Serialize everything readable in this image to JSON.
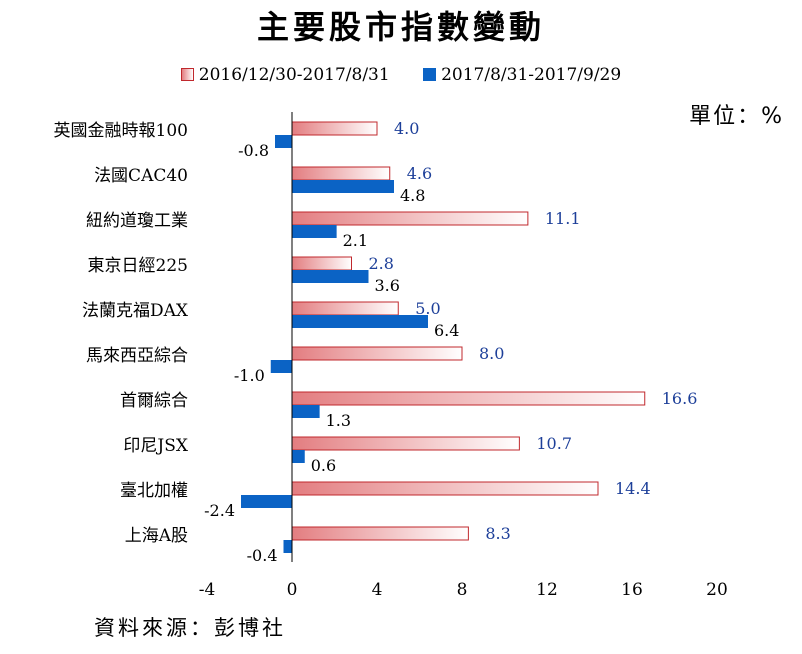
{
  "title": "主要股市指數變動",
  "unit": "單位：%",
  "source": "資料來源：彭博社",
  "colors": {
    "series_a_fill_start": "#e37d80",
    "series_a_fill_end": "#ffffff",
    "series_a_border": "#c0282d",
    "series_b": "#0b63c5",
    "series_a_label": "#1d3f99"
  },
  "chart_data": {
    "type": "bar",
    "orientation": "horizontal",
    "title": "主要股市指數變動",
    "categories": [
      "英國金融時報100",
      "法國CAC40",
      "紐約道瓊工業",
      "東京日經225",
      "法蘭克福DAX",
      "馬來西亞綜合",
      "首爾綜合",
      "印尼JSX",
      "臺北加權",
      "上海A股"
    ],
    "series": [
      {
        "name": "2016/12/30-2017/8/31",
        "values": [
          4.0,
          4.6,
          11.1,
          2.8,
          5.0,
          8.0,
          16.6,
          10.7,
          14.4,
          8.3
        ],
        "labels": [
          "4.0",
          "4.6",
          "11.1",
          "2.8",
          "5.0",
          "8.0",
          "16.6",
          "10.7",
          "14.4",
          "8.3"
        ]
      },
      {
        "name": "2017/8/31-2017/9/29",
        "values": [
          -0.8,
          4.8,
          2.1,
          3.6,
          6.4,
          -1.0,
          1.3,
          0.6,
          -2.4,
          -0.4
        ],
        "labels": [
          "-0.8",
          "4.8",
          "2.1",
          "3.6",
          "6.4",
          "-1.0",
          "1.3",
          "0.6",
          "-2.4",
          "-0.4"
        ]
      }
    ],
    "xlim": [
      -4,
      20
    ],
    "xticks": [
      "-4",
      "0",
      "4",
      "8",
      "12",
      "16",
      "20"
    ],
    "grid": false,
    "legend_position": "top"
  }
}
